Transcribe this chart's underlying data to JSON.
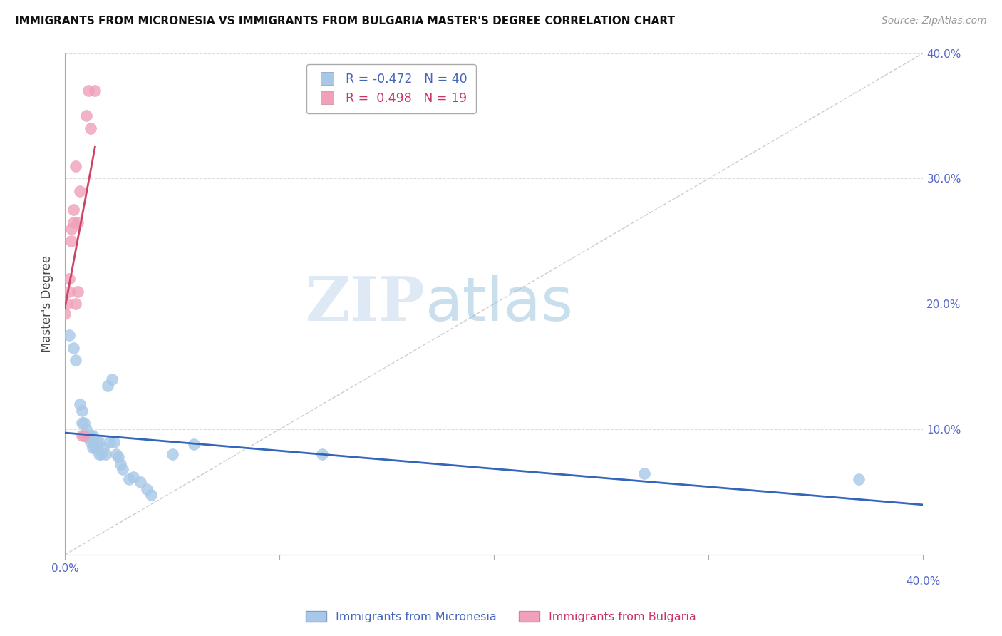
{
  "title": "IMMIGRANTS FROM MICRONESIA VS IMMIGRANTS FROM BULGARIA MASTER'S DEGREE CORRELATION CHART",
  "source": "Source: ZipAtlas.com",
  "ylabel": "Master's Degree",
  "xlim": [
    0.0,
    0.4
  ],
  "ylim": [
    0.0,
    0.4
  ],
  "watermark_zip": "ZIP",
  "watermark_atlas": "atlas",
  "blue_color": "#a8c8e8",
  "pink_color": "#f0a0b8",
  "blue_line_color": "#3366bb",
  "pink_line_color": "#cc4466",
  "blue_legend_color": "#a8c8e8",
  "pink_legend_color": "#f0a0b8",
  "legend_blue_label": "R = -0.472   N = 40",
  "legend_pink_label": "R =  0.498   N = 19",
  "bottom_label_blue": "Immigrants from Micronesia",
  "bottom_label_pink": "Immigrants from Bulgaria",
  "micronesia_x": [
    0.002,
    0.004,
    0.005,
    0.007,
    0.008,
    0.008,
    0.009,
    0.01,
    0.01,
    0.011,
    0.012,
    0.012,
    0.013,
    0.013,
    0.014,
    0.015,
    0.015,
    0.016,
    0.016,
    0.017,
    0.018,
    0.019,
    0.02,
    0.021,
    0.022,
    0.023,
    0.024,
    0.025,
    0.026,
    0.027,
    0.03,
    0.032,
    0.035,
    0.038,
    0.04,
    0.05,
    0.06,
    0.12,
    0.27,
    0.37
  ],
  "micronesia_y": [
    0.175,
    0.165,
    0.155,
    0.12,
    0.115,
    0.105,
    0.105,
    0.1,
    0.095,
    0.093,
    0.095,
    0.09,
    0.085,
    0.095,
    0.085,
    0.085,
    0.09,
    0.08,
    0.09,
    0.08,
    0.085,
    0.08,
    0.135,
    0.09,
    0.14,
    0.09,
    0.08,
    0.078,
    0.072,
    0.068,
    0.06,
    0.062,
    0.058,
    0.052,
    0.048,
    0.08,
    0.088,
    0.08,
    0.065,
    0.06
  ],
  "bulgaria_x": [
    0.0,
    0.001,
    0.002,
    0.002,
    0.003,
    0.003,
    0.004,
    0.004,
    0.005,
    0.005,
    0.006,
    0.006,
    0.007,
    0.008,
    0.009,
    0.01,
    0.011,
    0.012,
    0.014
  ],
  "bulgaria_y": [
    0.192,
    0.2,
    0.21,
    0.22,
    0.25,
    0.26,
    0.265,
    0.275,
    0.31,
    0.2,
    0.21,
    0.265,
    0.29,
    0.095,
    0.095,
    0.35,
    0.37,
    0.34,
    0.37
  ]
}
